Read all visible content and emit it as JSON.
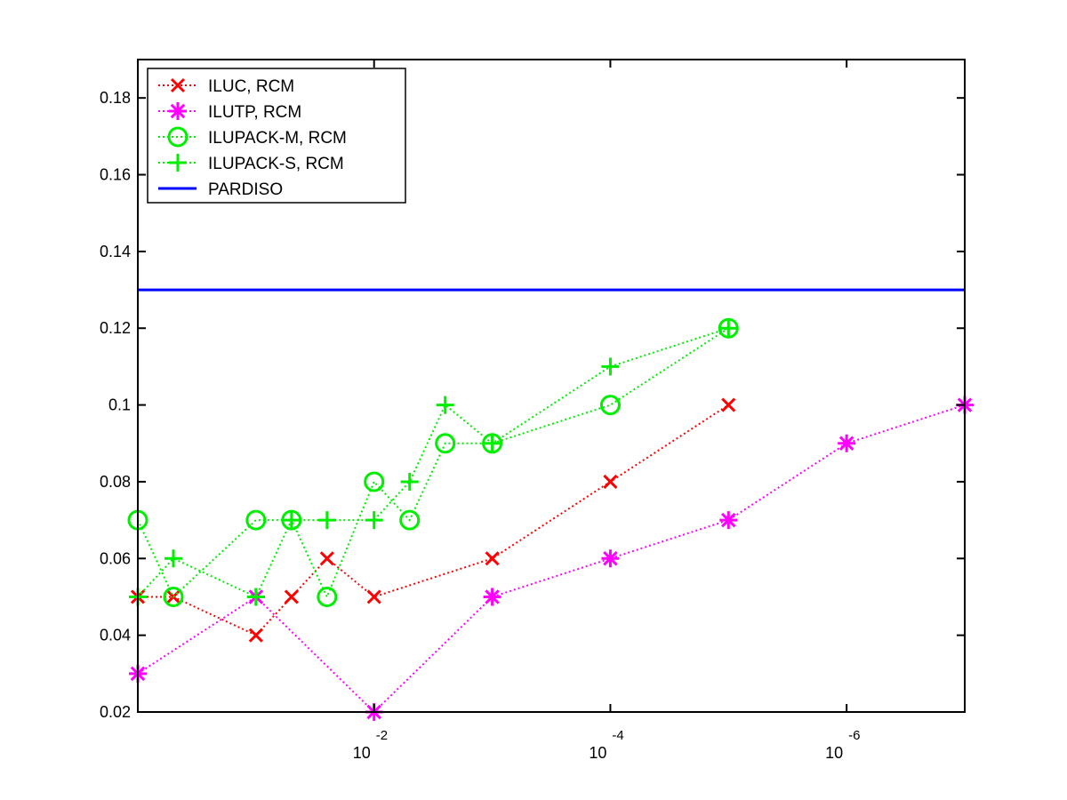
{
  "chart_data": {
    "type": "line",
    "title": "",
    "xlabel": "",
    "ylabel": "",
    "x_scale": "log",
    "x_direction": "reversed",
    "xlim": [
      1,
      1e-07
    ],
    "ylim": [
      0.02,
      0.19
    ],
    "grid": false,
    "legend_position": "top-left",
    "x_ticks": [
      {
        "value": 0.01,
        "base": "10",
        "exp": "-2"
      },
      {
        "value": 0.0001,
        "base": "10",
        "exp": "-4"
      },
      {
        "value": 1e-06,
        "base": "10",
        "exp": "-6"
      }
    ],
    "y_ticks": [
      "0.02",
      "0.04",
      "0.06",
      "0.08",
      "0.1",
      "0.12",
      "0.14",
      "0.16",
      "0.18"
    ],
    "series": [
      {
        "name": "ILUC, RCM",
        "color": "#ff0000",
        "marker": "x",
        "line_style": "dotted",
        "x": [
          1,
          0.5,
          0.1,
          0.05,
          0.025,
          0.01,
          0.001,
          0.0001,
          1e-05
        ],
        "y": [
          0.05,
          0.05,
          0.04,
          0.05,
          0.06,
          0.05,
          0.06,
          0.08,
          0.1
        ]
      },
      {
        "name": "ILUTP, RCM",
        "color": "#ff00ff",
        "marker": "asterisk",
        "line_style": "dotted",
        "x": [
          1,
          0.1,
          0.01,
          0.001,
          0.0001,
          1e-05,
          1e-06,
          1e-07
        ],
        "y": [
          0.03,
          0.05,
          0.02,
          0.05,
          0.06,
          0.07,
          0.09,
          0.1
        ]
      },
      {
        "name": "ILUPACK-M, RCM",
        "color": "#00ee00",
        "marker": "circle",
        "line_style": "dotted",
        "x": [
          1,
          0.5,
          0.1,
          0.05,
          0.025,
          0.01,
          0.005,
          0.0025,
          0.001,
          0.0001,
          1e-05
        ],
        "y": [
          0.07,
          0.05,
          0.07,
          0.07,
          0.05,
          0.08,
          0.07,
          0.09,
          0.09,
          0.1,
          0.12
        ]
      },
      {
        "name": "ILUPACK-S, RCM",
        "color": "#00ee00",
        "marker": "plus",
        "line_style": "dotted",
        "x": [
          1,
          0.5,
          0.1,
          0.05,
          0.025,
          0.01,
          0.005,
          0.0025,
          0.001,
          0.0001,
          1e-05
        ],
        "y": [
          0.05,
          0.06,
          0.05,
          0.07,
          0.07,
          0.07,
          0.08,
          0.1,
          0.09,
          0.11,
          0.12
        ]
      },
      {
        "name": "PARDISO",
        "color": "#0000ff",
        "marker": "none",
        "line_style": "solid",
        "x": [
          1,
          1e-07
        ],
        "y": [
          0.13,
          0.13
        ]
      }
    ]
  }
}
